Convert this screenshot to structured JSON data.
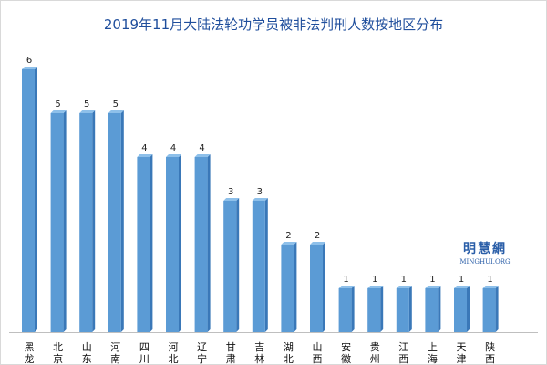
{
  "chart_data": {
    "type": "bar",
    "title": "2019年11月大陆法轮功学员被非法判刑人数按地区分布",
    "categories": [
      "黑龙江",
      "北京",
      "山东",
      "河南",
      "四川",
      "河北",
      "辽宁",
      "甘肃",
      "吉林",
      "湖北",
      "山西",
      "安徽",
      "贵州",
      "江西",
      "上海",
      "天津",
      "陕西"
    ],
    "tick_labels": [
      "黑龙",
      "北京",
      "山东",
      "河南",
      "四川",
      "河北",
      "辽宁",
      "甘肃",
      "吉林",
      "湖北",
      "山西",
      "安徽",
      "贵州",
      "江西",
      "上海",
      "天津",
      "陕西"
    ],
    "values": [
      6,
      5,
      5,
      5,
      4,
      4,
      4,
      3,
      3,
      2,
      2,
      1,
      1,
      1,
      1,
      1,
      1
    ],
    "ylim": [
      0,
      6
    ],
    "grid": false,
    "legend": "none",
    "xlabel": "",
    "ylabel": "",
    "bar_color": "#5b9bd5",
    "bar_dark": "#3a78b8",
    "bar_light": "#8ec0ea"
  },
  "logo": {
    "name": "明慧網",
    "url": "MINGHUI.ORG"
  }
}
